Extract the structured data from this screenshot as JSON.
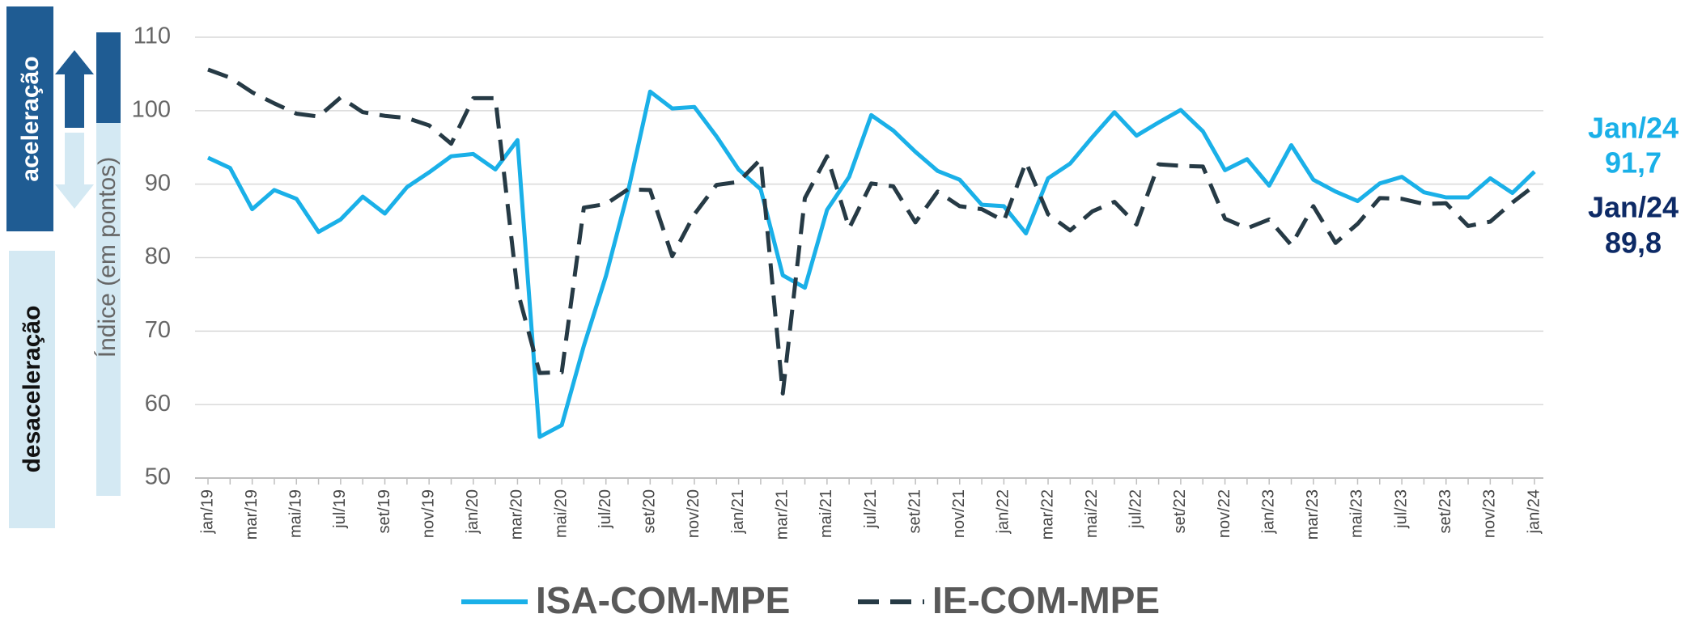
{
  "chart_data": {
    "type": "line",
    "y_axis_label": "Índice (em pontos)",
    "side_labels": {
      "top": "aceleração",
      "bottom": "desaceleração"
    },
    "categories": [
      "jan/19",
      null,
      "mar/19",
      null,
      "mai/19",
      null,
      "jul/19",
      null,
      "set/19",
      null,
      "nov/19",
      null,
      "jan/20",
      null,
      "mar/20",
      null,
      "mai/20",
      null,
      "jul/20",
      null,
      "set/20",
      null,
      "nov/20",
      null,
      "jan/21",
      null,
      "mar/21",
      null,
      "mai/21",
      null,
      "jul/21",
      null,
      "set/21",
      null,
      "nov/21",
      null,
      "jan/22",
      null,
      "mar/22",
      null,
      "mai/22",
      null,
      "jul/22",
      null,
      "set/22",
      null,
      "nov/22",
      null,
      "jan/23",
      null,
      "mar/23",
      null,
      "mai/23",
      null,
      "jul/23",
      null,
      "set/23",
      null,
      "nov/23",
      null,
      "jan/24"
    ],
    "series": [
      {
        "name": "ISA-COM-MPE",
        "color": "#1ab0e8",
        "dash": false,
        "values": [
          93.6,
          92.2,
          86.6,
          89.2,
          88,
          83.5,
          85.2,
          88.3,
          86,
          89.6,
          91.6,
          93.8,
          94.1,
          92,
          96,
          55.6,
          57.2,
          68,
          77.5,
          89,
          102.6,
          100.3,
          100.5,
          96.5,
          92,
          89.3,
          77.6,
          75.9,
          86.5,
          91,
          99.4,
          97.3,
          94.4,
          91.8,
          90.6,
          87.2,
          87,
          83.3,
          90.8,
          92.8,
          96.4,
          99.8,
          96.6,
          98.4,
          100.1,
          97.2,
          91.9,
          93.4,
          89.8,
          95.3,
          90.6,
          89,
          87.7,
          90.1,
          91,
          88.9,
          88.2,
          88.2,
          90.8,
          88.8,
          91.7
        ]
      },
      {
        "name": "IE-COM-MPE",
        "color": "#263a45",
        "dash": true,
        "values": [
          105.6,
          104.5,
          102.5,
          101,
          99.6,
          99.2,
          101.8,
          99.8,
          99.3,
          99,
          98,
          95.5,
          101.7,
          101.7,
          75.5,
          64.3,
          64.4,
          86.8,
          87.3,
          89.3,
          89.2,
          80.2,
          85.9,
          89.9,
          90.3,
          93.4,
          61.5,
          88.1,
          93.8,
          84,
          90.1,
          89.7,
          84.8,
          89,
          87,
          86.6,
          85,
          93,
          85.9,
          83.7,
          86.3,
          87.6,
          84.5,
          92.7,
          92.5,
          92.4,
          85.3,
          84,
          85.2,
          81.7,
          87,
          82,
          84.6,
          88.1,
          88,
          87.3,
          87.4,
          84.3,
          84.9,
          87.5,
          89.8
        ]
      }
    ],
    "annotations": [
      {
        "title": "Jan/24",
        "text": "91,7",
        "color": "#1ab0e8"
      },
      {
        "title": "Jan/24",
        "text": "89,8",
        "color": "#0d2a66"
      }
    ],
    "ylim": [
      50,
      110
    ],
    "yticks": [
      50,
      60,
      70,
      80,
      90,
      100,
      110
    ],
    "grid": true,
    "legend": "bottom"
  }
}
